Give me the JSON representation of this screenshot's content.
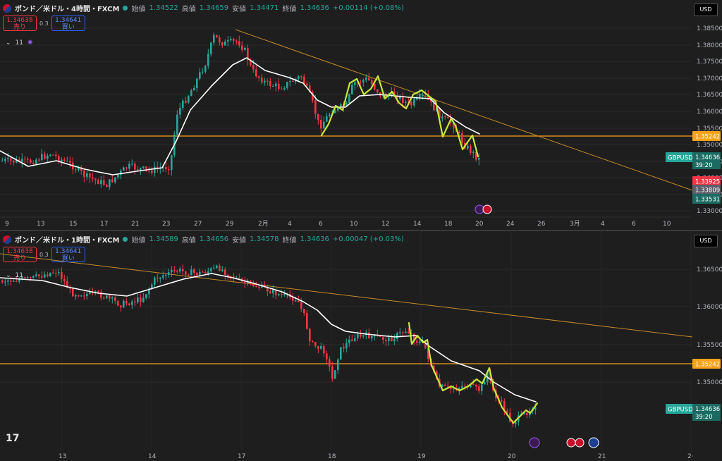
{
  "top": {
    "title": "ポンド／米ドル・4時間・FXCM",
    "ohlc": [
      {
        "label": "始値",
        "value": "1.34522"
      },
      {
        "label": "高値",
        "value": "1.34659"
      },
      {
        "label": "安値",
        "value": "1.34471"
      },
      {
        "label": "終値",
        "value": "1.34636"
      }
    ],
    "change": "+0.00114 (+0.08%)",
    "sell_price": "1.34638",
    "sell_label": "売り",
    "spread": "0.3",
    "buy_price": "1.34641",
    "buy_label": "買い",
    "indicator": "11",
    "currency": "USD",
    "y_ticks": [
      "1.38500",
      "1.38000",
      "1.37500",
      "1.37000",
      "1.36500",
      "1.36000",
      "1.35500",
      "1.35000",
      "1.34500",
      "1.34000",
      "1.33500",
      "1.33000"
    ],
    "x_ticks": [
      "9",
      "13",
      "15",
      "17",
      "21",
      "23",
      "27",
      "29",
      "2月",
      "4",
      "6",
      "10",
      "12",
      "14",
      "18",
      "20",
      "24",
      "26",
      "3月",
      "4",
      "6",
      "10"
    ],
    "tags": {
      "hline": "1.35242",
      "symbol": "GBPUSD",
      "price": "1.34636",
      "countdown": "39:20",
      "high": "1.33925",
      "mid": "1.33809",
      "low": "1.33531"
    }
  },
  "bottom": {
    "title": "ポンド／米ドル・1時間・FXCM",
    "ohlc": [
      {
        "label": "始値",
        "value": "1.34589"
      },
      {
        "label": "高値",
        "value": "1.34656"
      },
      {
        "label": "安値",
        "value": "1.34578"
      },
      {
        "label": "終値",
        "value": "1.34636"
      }
    ],
    "change": "+0.00047 (+0.03%)",
    "sell_price": "1.34638",
    "sell_label": "売り",
    "spread": "0.3",
    "buy_price": "1.34641",
    "buy_label": "買い",
    "indicator": "11",
    "currency": "USD",
    "y_ticks": [
      "1.36500",
      "1.36000",
      "1.35500",
      "1.35000"
    ],
    "x_ticks": [
      "13",
      "14",
      "17",
      "18",
      "19",
      "20",
      "21",
      "2·"
    ],
    "tags": {
      "hline": "1.35242",
      "symbol": "GBPUSD",
      "price": "1.34636",
      "countdown": "39:20"
    }
  },
  "colors": {
    "up": "#26a69a",
    "down": "#f23645",
    "level": "#f7a21b",
    "trend": "#c58b2a",
    "ma": "#ffffff",
    "wave": "#c6e83a",
    "bg": "#1e1e1e"
  },
  "icons": [
    "currency-pair-icon",
    "market-open-dot-icon",
    "chevron-down-icon",
    "tradingview-logo-icon",
    "lightning-event-icon",
    "uk-flag-icon",
    "us-flag-icon"
  ]
}
